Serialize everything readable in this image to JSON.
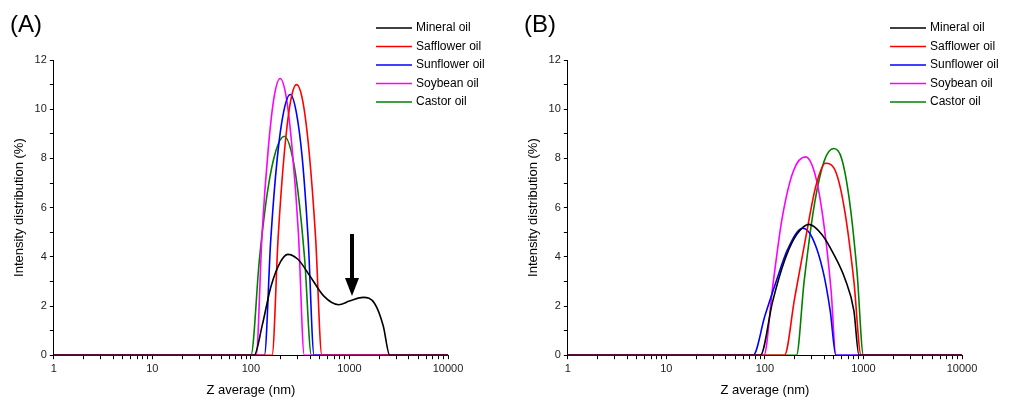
{
  "chart_data": [
    {
      "type": "line",
      "title": "(A)",
      "xlabel": "Z average (nm)",
      "ylabel": "Intensity distribution (%)",
      "log": "x",
      "grid": false,
      "legend": "top right",
      "marker": "none",
      "line_style": "solid",
      "xlim": [
        1,
        10000
      ],
      "ylim": [
        0,
        12
      ],
      "xticks": [
        1,
        {
          "value": 2,
          "label": null
        },
        {
          "value": 3,
          "label": null
        },
        {
          "value": 4,
          "label": null
        },
        {
          "value": 5,
          "label": null
        },
        {
          "value": 6,
          "label": null
        },
        {
          "value": 7,
          "label": null
        },
        {
          "value": 8,
          "label": null
        },
        {
          "value": 9,
          "label": null
        },
        10,
        {
          "value": 20,
          "label": null
        },
        {
          "value": 30,
          "label": null
        },
        {
          "value": 40,
          "label": null
        },
        {
          "value": 50,
          "label": null
        },
        {
          "value": 60,
          "label": null
        },
        {
          "value": 70,
          "label": null
        },
        {
          "value": 80,
          "label": null
        },
        {
          "value": 90,
          "label": null
        },
        100,
        {
          "value": 200,
          "label": null
        },
        {
          "value": 300,
          "label": null
        },
        {
          "value": 400,
          "label": null
        },
        {
          "value": 500,
          "label": null
        },
        {
          "value": 600,
          "label": null
        },
        {
          "value": 700,
          "label": null
        },
        {
          "value": 800,
          "label": null
        },
        {
          "value": 900,
          "label": null
        },
        1000,
        {
          "value": 2000,
          "label": null
        },
        {
          "value": 3000,
          "label": null
        },
        {
          "value": 4000,
          "label": null
        },
        {
          "value": 5000,
          "label": null
        },
        {
          "value": 6000,
          "label": null
        },
        {
          "value": 7000,
          "label": null
        },
        {
          "value": 8000,
          "label": null
        },
        {
          "value": 9000,
          "label": null
        },
        10000
      ],
      "yticks": [
        0,
        {
          "value": 1,
          "label": null
        },
        2,
        {
          "value": 3,
          "label": null
        },
        4,
        {
          "value": 5,
          "label": null
        },
        6,
        {
          "value": 7,
          "label": null
        },
        8,
        {
          "value": 9,
          "label": null
        },
        10,
        {
          "value": 11,
          "label": null
        },
        12
      ],
      "series": [
        {
          "name": "Mineral oil",
          "color": "#000000",
          "x": [
            1,
            108,
            130,
            160,
            200,
            237,
            300,
            400,
            550,
            778,
            1000,
            1384,
            1800,
            2200,
            2565,
            10000
          ],
          "values": [
            0,
            0,
            1.2,
            2.8,
            3.8,
            4.1,
            3.9,
            3.2,
            2.4,
            2.05,
            2.2,
            2.35,
            2.1,
            1.2,
            0,
            0
          ]
        },
        {
          "name": "Safflower oil",
          "color": "#ff0000",
          "x": [
            1,
            164,
            189,
            218,
            252,
            290,
            337,
            391,
            453,
            525,
            10000
          ],
          "values": [
            0,
            0,
            4.8,
            8.2,
            10.3,
            11,
            10.3,
            8.2,
            4.8,
            0,
            0
          ]
        },
        {
          "name": "Sunflower oil",
          "color": "#0000ff",
          "x": [
            1,
            137,
            159,
            185,
            215,
            251,
            288,
            332,
            381,
            438,
            10000
          ],
          "values": [
            0,
            0,
            4.7,
            8.0,
            9.9,
            10.6,
            9.9,
            8.0,
            4.7,
            0,
            0
          ]
        },
        {
          "name": "Soybean oil",
          "color": "#ff00ff",
          "x": [
            1,
            113,
            130,
            150,
            172,
            198,
            228,
            262,
            303,
            348,
            10000
          ],
          "values": [
            0,
            0,
            5.0,
            8.4,
            10.5,
            11.25,
            10.5,
            8.4,
            5.0,
            0,
            0
          ]
        },
        {
          "name": "Castor oil",
          "color": "#008000",
          "x": [
            1,
            100,
            122,
            148,
            179,
            218,
            256,
            299,
            351,
            411,
            10000
          ],
          "values": [
            0,
            0,
            3.9,
            6.7,
            8.3,
            8.9,
            8.3,
            6.7,
            3.9,
            0,
            0
          ]
        }
      ]
    },
    {
      "type": "line",
      "title": "(B)",
      "xlabel": "Z average (nm)",
      "ylabel": "Intensity distribution (%)",
      "log": "x",
      "grid": false,
      "legend": "top right",
      "marker": "none",
      "line_style": "solid",
      "xlim": [
        1,
        10000
      ],
      "ylim": [
        0,
        12
      ],
      "xticks": [
        1,
        {
          "value": 2,
          "label": null
        },
        {
          "value": 3,
          "label": null
        },
        {
          "value": 4,
          "label": null
        },
        {
          "value": 5,
          "label": null
        },
        {
          "value": 6,
          "label": null
        },
        {
          "value": 7,
          "label": null
        },
        {
          "value": 8,
          "label": null
        },
        {
          "value": 9,
          "label": null
        },
        10,
        {
          "value": 20,
          "label": null
        },
        {
          "value": 30,
          "label": null
        },
        {
          "value": 40,
          "label": null
        },
        {
          "value": 50,
          "label": null
        },
        {
          "value": 60,
          "label": null
        },
        {
          "value": 70,
          "label": null
        },
        {
          "value": 80,
          "label": null
        },
        {
          "value": 90,
          "label": null
        },
        100,
        {
          "value": 200,
          "label": null
        },
        {
          "value": 300,
          "label": null
        },
        {
          "value": 400,
          "label": null
        },
        {
          "value": 500,
          "label": null
        },
        {
          "value": 600,
          "label": null
        },
        {
          "value": 700,
          "label": null
        },
        {
          "value": 800,
          "label": null
        },
        {
          "value": 900,
          "label": null
        },
        1000,
        {
          "value": 2000,
          "label": null
        },
        {
          "value": 3000,
          "label": null
        },
        {
          "value": 4000,
          "label": null
        },
        {
          "value": 5000,
          "label": null
        },
        {
          "value": 6000,
          "label": null
        },
        {
          "value": 7000,
          "label": null
        },
        {
          "value": 8000,
          "label": null
        },
        {
          "value": 9000,
          "label": null
        },
        10000
      ],
      "yticks": [
        0,
        {
          "value": 1,
          "label": null
        },
        2,
        {
          "value": 3,
          "label": null
        },
        4,
        {
          "value": 5,
          "label": null
        },
        6,
        {
          "value": 7,
          "label": null
        },
        8,
        {
          "value": 9,
          "label": null
        },
        10,
        {
          "value": 11,
          "label": null
        },
        12
      ],
      "series": [
        {
          "name": "Mineral oil",
          "color": "#000000",
          "x": [
            1,
            90,
            120,
            160,
            210,
            281,
            380,
            500,
            650,
            800,
            900,
            10000
          ],
          "values": [
            0,
            0,
            2.2,
            3.9,
            4.9,
            5.32,
            4.9,
            4.1,
            3.1,
            1.8,
            0,
            0
          ]
        },
        {
          "name": "Safflower oil",
          "color": "#ff0000",
          "x": [
            1,
            158,
            200,
            260,
            330,
            412,
            530,
            650,
            800,
            946,
            10000
          ],
          "values": [
            0,
            0,
            2.3,
            4.8,
            6.9,
            7.8,
            7.4,
            5.8,
            3.0,
            0,
            0
          ]
        },
        {
          "name": "Sunflower oil",
          "color": "#0000ff",
          "x": [
            1,
            76,
            100,
            130,
            170,
            241,
            300,
            390,
            460,
            525,
            10000
          ],
          "values": [
            0,
            0,
            1.6,
            3.0,
            4.3,
            5.16,
            4.8,
            3.4,
            1.8,
            0,
            0
          ]
        },
        {
          "name": "Soybean oil",
          "color": "#ff00ff",
          "x": [
            1,
            98,
            120,
            150,
            195,
            258,
            330,
            400,
            470,
            525,
            10000
          ],
          "values": [
            0,
            0,
            2.8,
            5.6,
            7.5,
            8.06,
            7.2,
            5.2,
            2.6,
            0,
            0
          ]
        },
        {
          "name": "Castor oil",
          "color": "#008000",
          "x": [
            1,
            209,
            250,
            320,
            400,
            500,
            600,
            720,
            860,
            1000,
            10000
          ],
          "values": [
            0,
            0,
            3.0,
            6.2,
            7.9,
            8.4,
            8.0,
            6.3,
            3.4,
            0,
            0
          ]
        }
      ]
    }
  ]
}
